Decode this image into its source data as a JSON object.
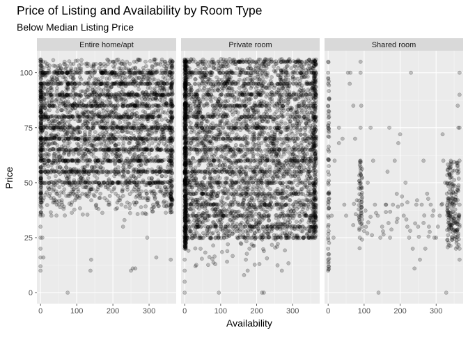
{
  "chart_data": {
    "type": "scatter",
    "title": "Price of Listing and Availability by Room Type",
    "subtitle": "Below Median Listing Price",
    "xlabel": "Availability",
    "ylabel": "Price",
    "xlim": [
      -10,
      375
    ],
    "ylim": [
      -5,
      110
    ],
    "x_ticks": [
      0,
      100,
      200,
      300
    ],
    "y_ticks": [
      0,
      25,
      50,
      75,
      100
    ],
    "grid": true,
    "legend": "none",
    "point_color": "#000000",
    "point_alpha": 0.22,
    "panel_background": "#ebebeb",
    "strip_background": "#d9d9d9",
    "facets": [
      {
        "label": "Entire home/apt",
        "note": "Dense points concentrated at prices 35-106 across all availability values 0-365, heavy column at x=0 and near x=365; sparse points below 35.",
        "points": [
          [
            0,
            106
          ],
          [
            0,
            100
          ],
          [
            0,
            95
          ],
          [
            0,
            90
          ],
          [
            0,
            85
          ],
          [
            0,
            80
          ],
          [
            0,
            75
          ],
          [
            0,
            70
          ],
          [
            0,
            65
          ],
          [
            0,
            60
          ],
          [
            0,
            55
          ],
          [
            0,
            50
          ],
          [
            0,
            45
          ],
          [
            0,
            40
          ],
          [
            0,
            35
          ],
          [
            0,
            30
          ],
          [
            0,
            25
          ],
          [
            0,
            20
          ],
          [
            0,
            16
          ],
          [
            0,
            12
          ],
          [
            0,
            10
          ],
          [
            5,
            25
          ],
          [
            8,
            16
          ],
          [
            75,
            0
          ],
          [
            138,
            10
          ],
          [
            140,
            15
          ],
          [
            250,
            10
          ],
          [
            255,
            11
          ],
          [
            262,
            11
          ],
          [
            295,
            25
          ],
          [
            320,
            16
          ],
          [
            360,
            15
          ],
          [
            228,
            30
          ],
          [
            232,
            33
          ],
          [
            30,
            35
          ],
          [
            45,
            40
          ],
          [
            60,
            40
          ],
          [
            90,
            45
          ],
          [
            180,
            48
          ],
          [
            200,
            50
          ],
          [
            215,
            50
          ],
          [
            240,
            48
          ],
          [
            300,
            52
          ],
          [
            345,
            48
          ],
          [
            360,
            40
          ],
          [
            120,
            55
          ],
          [
            150,
            57
          ],
          [
            270,
            55
          ],
          [
            100,
            65
          ],
          [
            210,
            62
          ],
          [
            330,
            60
          ],
          [
            50,
            70
          ],
          [
            175,
            72
          ],
          [
            285,
            68
          ],
          [
            365,
            70
          ],
          [
            20,
            80
          ],
          [
            140,
            82
          ],
          [
            260,
            78
          ],
          [
            365,
            85
          ],
          [
            60,
            90
          ],
          [
            190,
            92
          ],
          [
            320,
            95
          ],
          [
            365,
            100
          ],
          [
            100,
            100
          ],
          [
            230,
            104
          ],
          [
            365,
            105
          ]
        ]
      },
      {
        "label": "Private room",
        "note": "Very dense: near-solid horizontal bands at integer prices 25-106 across availability 0-365; sparse below 25.",
        "points": [
          [
            0,
            106
          ],
          [
            0,
            100
          ],
          [
            0,
            95
          ],
          [
            0,
            90
          ],
          [
            0,
            85
          ],
          [
            0,
            80
          ],
          [
            0,
            75
          ],
          [
            0,
            70
          ],
          [
            0,
            65
          ],
          [
            0,
            60
          ],
          [
            0,
            55
          ],
          [
            0,
            50
          ],
          [
            0,
            45
          ],
          [
            0,
            40
          ],
          [
            0,
            35
          ],
          [
            0,
            30
          ],
          [
            0,
            25
          ],
          [
            0,
            20
          ],
          [
            0,
            15
          ],
          [
            0,
            10
          ],
          [
            0,
            5
          ],
          [
            0,
            0
          ],
          [
            30,
            12
          ],
          [
            95,
            0
          ],
          [
            165,
            8
          ],
          [
            170,
            15
          ],
          [
            175,
            10
          ],
          [
            215,
            0
          ],
          [
            220,
            0
          ],
          [
            270,
            10
          ],
          [
            180,
            20
          ],
          [
            120,
            22
          ],
          [
            365,
            106
          ],
          [
            365,
            100
          ],
          [
            365,
            90
          ],
          [
            365,
            80
          ],
          [
            365,
            70
          ],
          [
            365,
            60
          ],
          [
            365,
            50
          ],
          [
            365,
            40
          ],
          [
            365,
            30
          ]
        ]
      },
      {
        "label": "Shared room",
        "note": "Sparse scatter; clusters near x=0, x≈90 and x≈330-365 at prices 20-60; scattered points at 60-105.",
        "points": [
          [
            0,
            105
          ],
          [
            0,
            100
          ],
          [
            0,
            95
          ],
          [
            0,
            85
          ],
          [
            0,
            75
          ],
          [
            0,
            65
          ],
          [
            0,
            55
          ],
          [
            0,
            50
          ],
          [
            0,
            45
          ],
          [
            0,
            40
          ],
          [
            0,
            35
          ],
          [
            0,
            30
          ],
          [
            0,
            25
          ],
          [
            0,
            20
          ],
          [
            0,
            15
          ],
          [
            0,
            10
          ],
          [
            10,
            35
          ],
          [
            15,
            25
          ],
          [
            18,
            60
          ],
          [
            30,
            75
          ],
          [
            30,
            68
          ],
          [
            40,
            70
          ],
          [
            45,
            40
          ],
          [
            50,
            35
          ],
          [
            55,
            100
          ],
          [
            60,
            95
          ],
          [
            62,
            100
          ],
          [
            70,
            85
          ],
          [
            75,
            70
          ],
          [
            80,
            42
          ],
          [
            85,
            35
          ],
          [
            88,
            25
          ],
          [
            90,
            105
          ],
          [
            90,
            100
          ],
          [
            92,
            85
          ],
          [
            90,
            75
          ],
          [
            90,
            60
          ],
          [
            90,
            50
          ],
          [
            92,
            40
          ],
          [
            90,
            35
          ],
          [
            95,
            30
          ],
          [
            110,
            50
          ],
          [
            118,
            75
          ],
          [
            125,
            60
          ],
          [
            130,
            40
          ],
          [
            138,
            35
          ],
          [
            140,
            0
          ],
          [
            145,
            25
          ],
          [
            150,
            30
          ],
          [
            160,
            40
          ],
          [
            165,
            55
          ],
          [
            170,
            75
          ],
          [
            172,
            25
          ],
          [
            180,
            40
          ],
          [
            185,
            60
          ],
          [
            195,
            68
          ],
          [
            200,
            72
          ],
          [
            205,
            40
          ],
          [
            210,
            35
          ],
          [
            215,
            50
          ],
          [
            220,
            30
          ],
          [
            225,
            25
          ],
          [
            230,
            100
          ],
          [
            235,
            20
          ],
          [
            240,
            11
          ],
          [
            245,
            40
          ],
          [
            250,
            30
          ],
          [
            255,
            15
          ],
          [
            260,
            40
          ],
          [
            265,
            60
          ],
          [
            270,
            20
          ],
          [
            275,
            45
          ],
          [
            280,
            30
          ],
          [
            285,
            40
          ],
          [
            290,
            35
          ],
          [
            295,
            25
          ],
          [
            300,
            25
          ],
          [
            305,
            30
          ],
          [
            310,
            35
          ],
          [
            315,
            40
          ],
          [
            318,
            72
          ],
          [
            320,
            60
          ],
          [
            325,
            50
          ],
          [
            330,
            45
          ],
          [
            335,
            30
          ],
          [
            340,
            35
          ],
          [
            345,
            25
          ],
          [
            350,
            40
          ],
          [
            355,
            20
          ],
          [
            360,
            85
          ],
          [
            362,
            75
          ],
          [
            365,
            100
          ],
          [
            365,
            90
          ],
          [
            365,
            75
          ],
          [
            365,
            60
          ],
          [
            365,
            40
          ],
          [
            365,
            30
          ],
          [
            365,
            20
          ],
          [
            365,
            15
          ],
          [
            328,
            0
          ]
        ]
      }
    ]
  }
}
